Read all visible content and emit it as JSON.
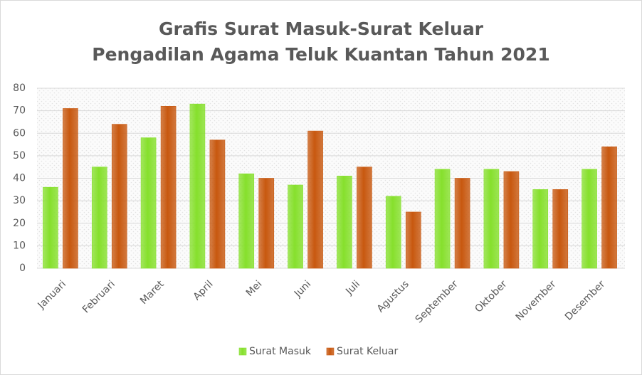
{
  "chart_data": {
    "type": "bar",
    "title": "Grafis Surat Masuk-Surat Keluar",
    "subtitle": "Pengadilan Agama Teluk Kuantan Tahun 2021",
    "categories": [
      "Januari",
      "Februari",
      "Maret",
      "April",
      "Mei",
      "Juni",
      "Juli",
      "Agustus",
      "September",
      "Oktober",
      "November",
      "Desember"
    ],
    "series": [
      {
        "name": "Surat Masuk",
        "color": "#86e02c",
        "values": [
          36,
          45,
          58,
          73,
          42,
          37,
          41,
          32,
          44,
          44,
          35,
          44
        ]
      },
      {
        "name": "Surat Keluar",
        "color": "#c8580f",
        "values": [
          71,
          64,
          72,
          57,
          40,
          61,
          45,
          25,
          40,
          43,
          35,
          54
        ]
      }
    ],
    "ylim": [
      0,
      80
    ],
    "yticks": [
      0,
      10,
      20,
      30,
      40,
      50,
      60,
      70,
      80
    ],
    "grid": true,
    "legend": "bottom"
  }
}
